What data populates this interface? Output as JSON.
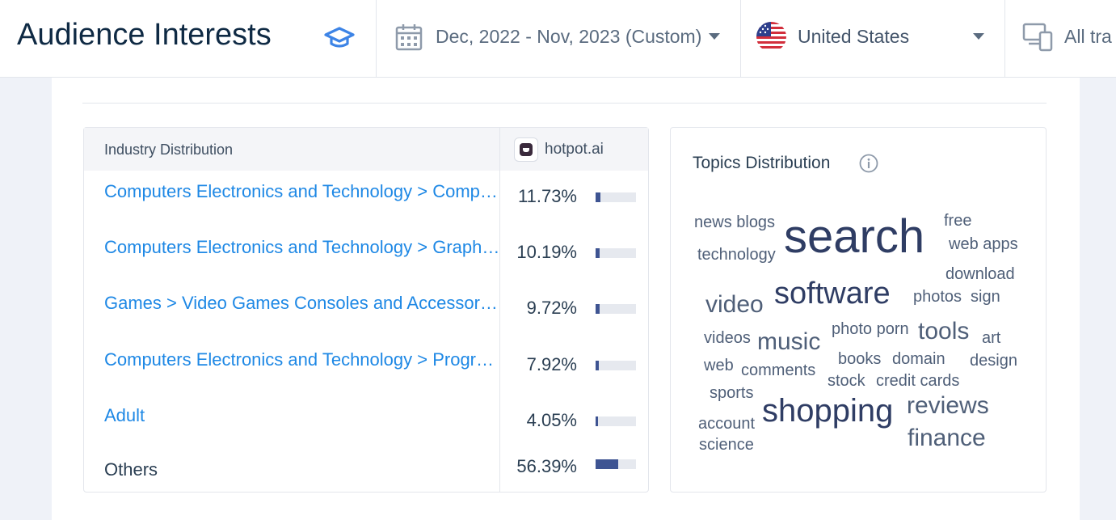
{
  "header": {
    "title": "Audience Interests",
    "date_range": "Dec, 2022 - Nov, 2023 (Custom)",
    "country": "United States",
    "traffic": "All tra"
  },
  "industry": {
    "column_label": "Industry Distribution",
    "site": "hotpot.ai",
    "rows": [
      {
        "label": "Computers Electronics and Technology > Computers Electronics and Technology",
        "pct": "11.73%",
        "value": 11.73,
        "link": true
      },
      {
        "label": "Computers Electronics and Technology > Graphics Multimedia and Web Design",
        "pct": "10.19%",
        "value": 10.19,
        "link": true
      },
      {
        "label": "Games > Video Games Consoles and Accessories",
        "pct": "9.72%",
        "value": 9.72,
        "link": true
      },
      {
        "label": "Computers Electronics and Technology > Programming and Developer Software",
        "pct": "7.92%",
        "value": 7.92,
        "link": true
      },
      {
        "label": "Adult",
        "pct": "4.05%",
        "value": 4.05,
        "link": true
      },
      {
        "label": "Others",
        "pct": "56.39%",
        "value": 56.39,
        "link": false
      }
    ]
  },
  "topics": {
    "title": "Topics Distribution",
    "words": [
      {
        "text": "news blogs"
      },
      {
        "text": "search"
      },
      {
        "text": "free"
      },
      {
        "text": "web apps"
      },
      {
        "text": "technology"
      },
      {
        "text": "download"
      },
      {
        "text": "video"
      },
      {
        "text": "software"
      },
      {
        "text": "photos"
      },
      {
        "text": "sign"
      },
      {
        "text": "videos"
      },
      {
        "text": "music"
      },
      {
        "text": "photo porn"
      },
      {
        "text": "tools"
      },
      {
        "text": "art"
      },
      {
        "text": "web"
      },
      {
        "text": "comments"
      },
      {
        "text": "books"
      },
      {
        "text": "domain"
      },
      {
        "text": "design"
      },
      {
        "text": "stock"
      },
      {
        "text": "credit cards"
      },
      {
        "text": "sports"
      },
      {
        "text": "account"
      },
      {
        "text": "shopping"
      },
      {
        "text": "reviews"
      },
      {
        "text": "science"
      },
      {
        "text": "finance"
      }
    ]
  },
  "colors": {
    "link": "#1e88e5",
    "bar": "#3e5492",
    "bar_track": "#e6e9ef",
    "title": "#0f2a44"
  },
  "icons": {
    "title": "graduation-cap-icon",
    "date": "calendar-icon",
    "country": "us-flag-icon",
    "traffic": "devices-icon",
    "topics_info": "info-icon",
    "site": "hotpot-favicon"
  }
}
